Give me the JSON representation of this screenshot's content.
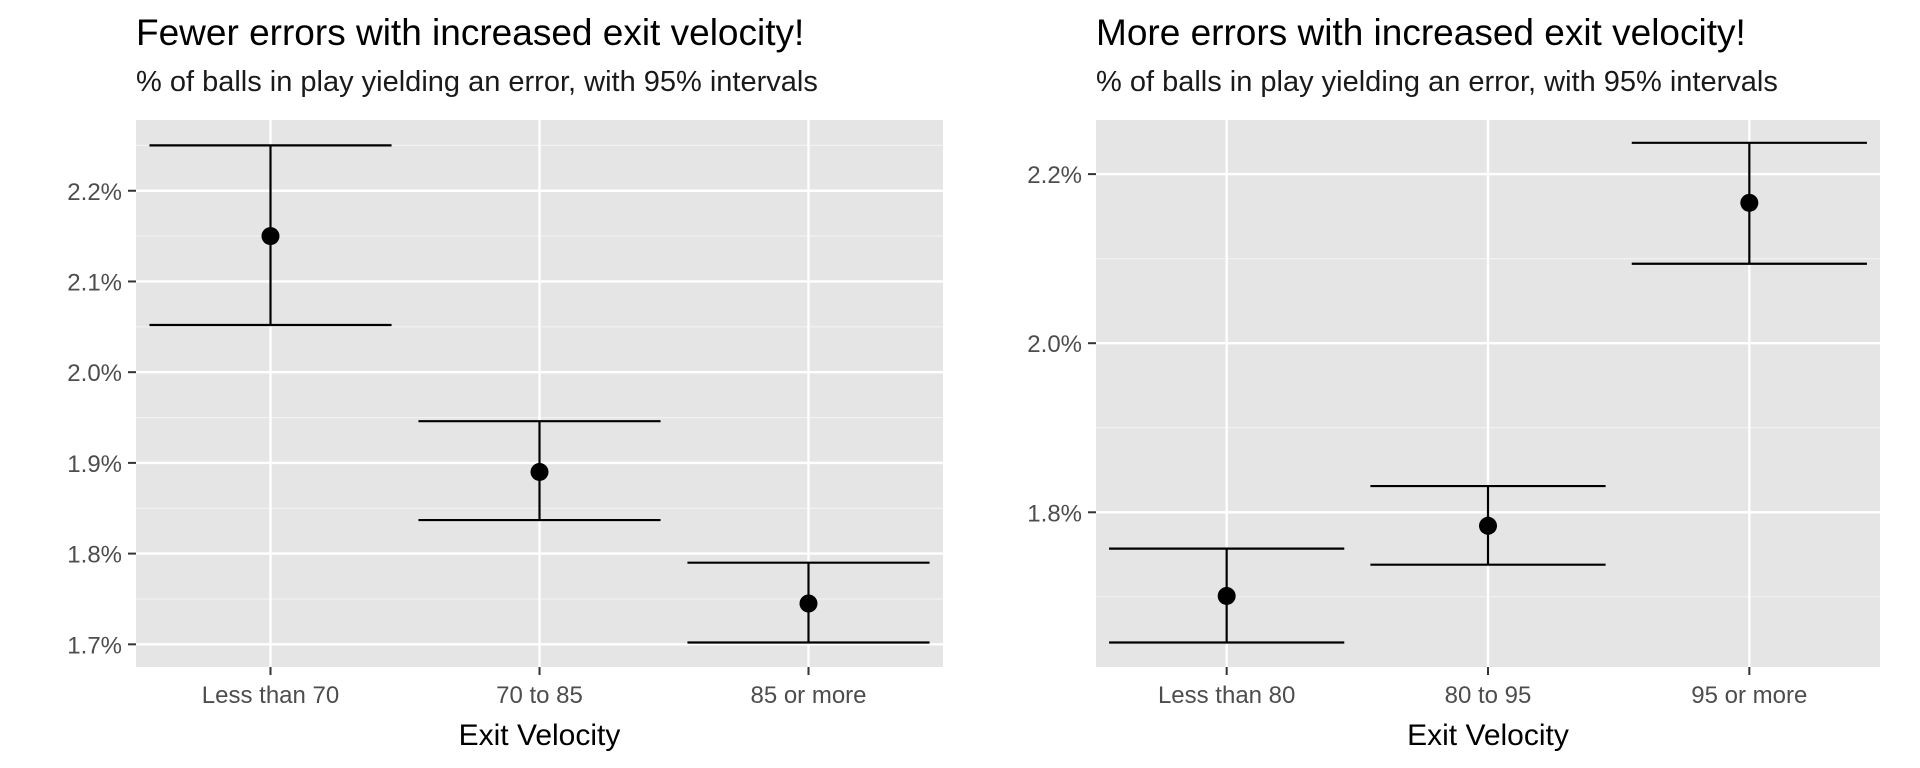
{
  "chart_data": [
    {
      "type": "errorbar",
      "title": "Fewer errors with increased exit velocity!",
      "subtitle": "% of balls in play yielding an error, with 95% intervals",
      "xlabel": "Exit Velocity",
      "ylabel": "",
      "categories": [
        "Less than 70",
        "70 to 85",
        "85 or more"
      ],
      "series": [
        {
          "values": [
            2.15,
            1.89,
            1.745
          ],
          "lower": [
            2.052,
            1.837,
            1.702
          ],
          "upper": [
            2.25,
            1.946,
            1.79
          ]
        }
      ],
      "ylim": [
        1.675,
        2.278
      ],
      "yticks": [
        1.7,
        1.8,
        1.9,
        2.0,
        2.1,
        2.2
      ],
      "ytick_labels": [
        "1.7%",
        "1.8%",
        "1.9%",
        "2.0%",
        "2.1%",
        "2.2%"
      ],
      "grid": true,
      "legend": "none"
    },
    {
      "type": "errorbar",
      "title": "More errors with increased exit velocity!",
      "subtitle": "% of balls in play yielding an error, with 95% intervals",
      "xlabel": "Exit Velocity",
      "ylabel": "",
      "categories": [
        "Less than 80",
        "80 to 95",
        "95 or more"
      ],
      "series": [
        {
          "values": [
            1.701,
            1.784,
            2.166
          ],
          "lower": [
            1.646,
            1.738,
            2.094
          ],
          "upper": [
            1.757,
            1.831,
            2.237
          ]
        }
      ],
      "ylim": [
        1.617,
        2.264
      ],
      "yticks": [
        1.8,
        2.0,
        2.2
      ],
      "ytick_labels": [
        "1.8%",
        "2.0%",
        "2.2%"
      ],
      "grid": true,
      "legend": "none"
    }
  ],
  "colors": {
    "panel_background": "#e5e5e5",
    "grid_major": "#ffffff",
    "grid_minor": "#f2f2f2",
    "mark": "#000000",
    "axis_text": "#4d4d4d"
  }
}
